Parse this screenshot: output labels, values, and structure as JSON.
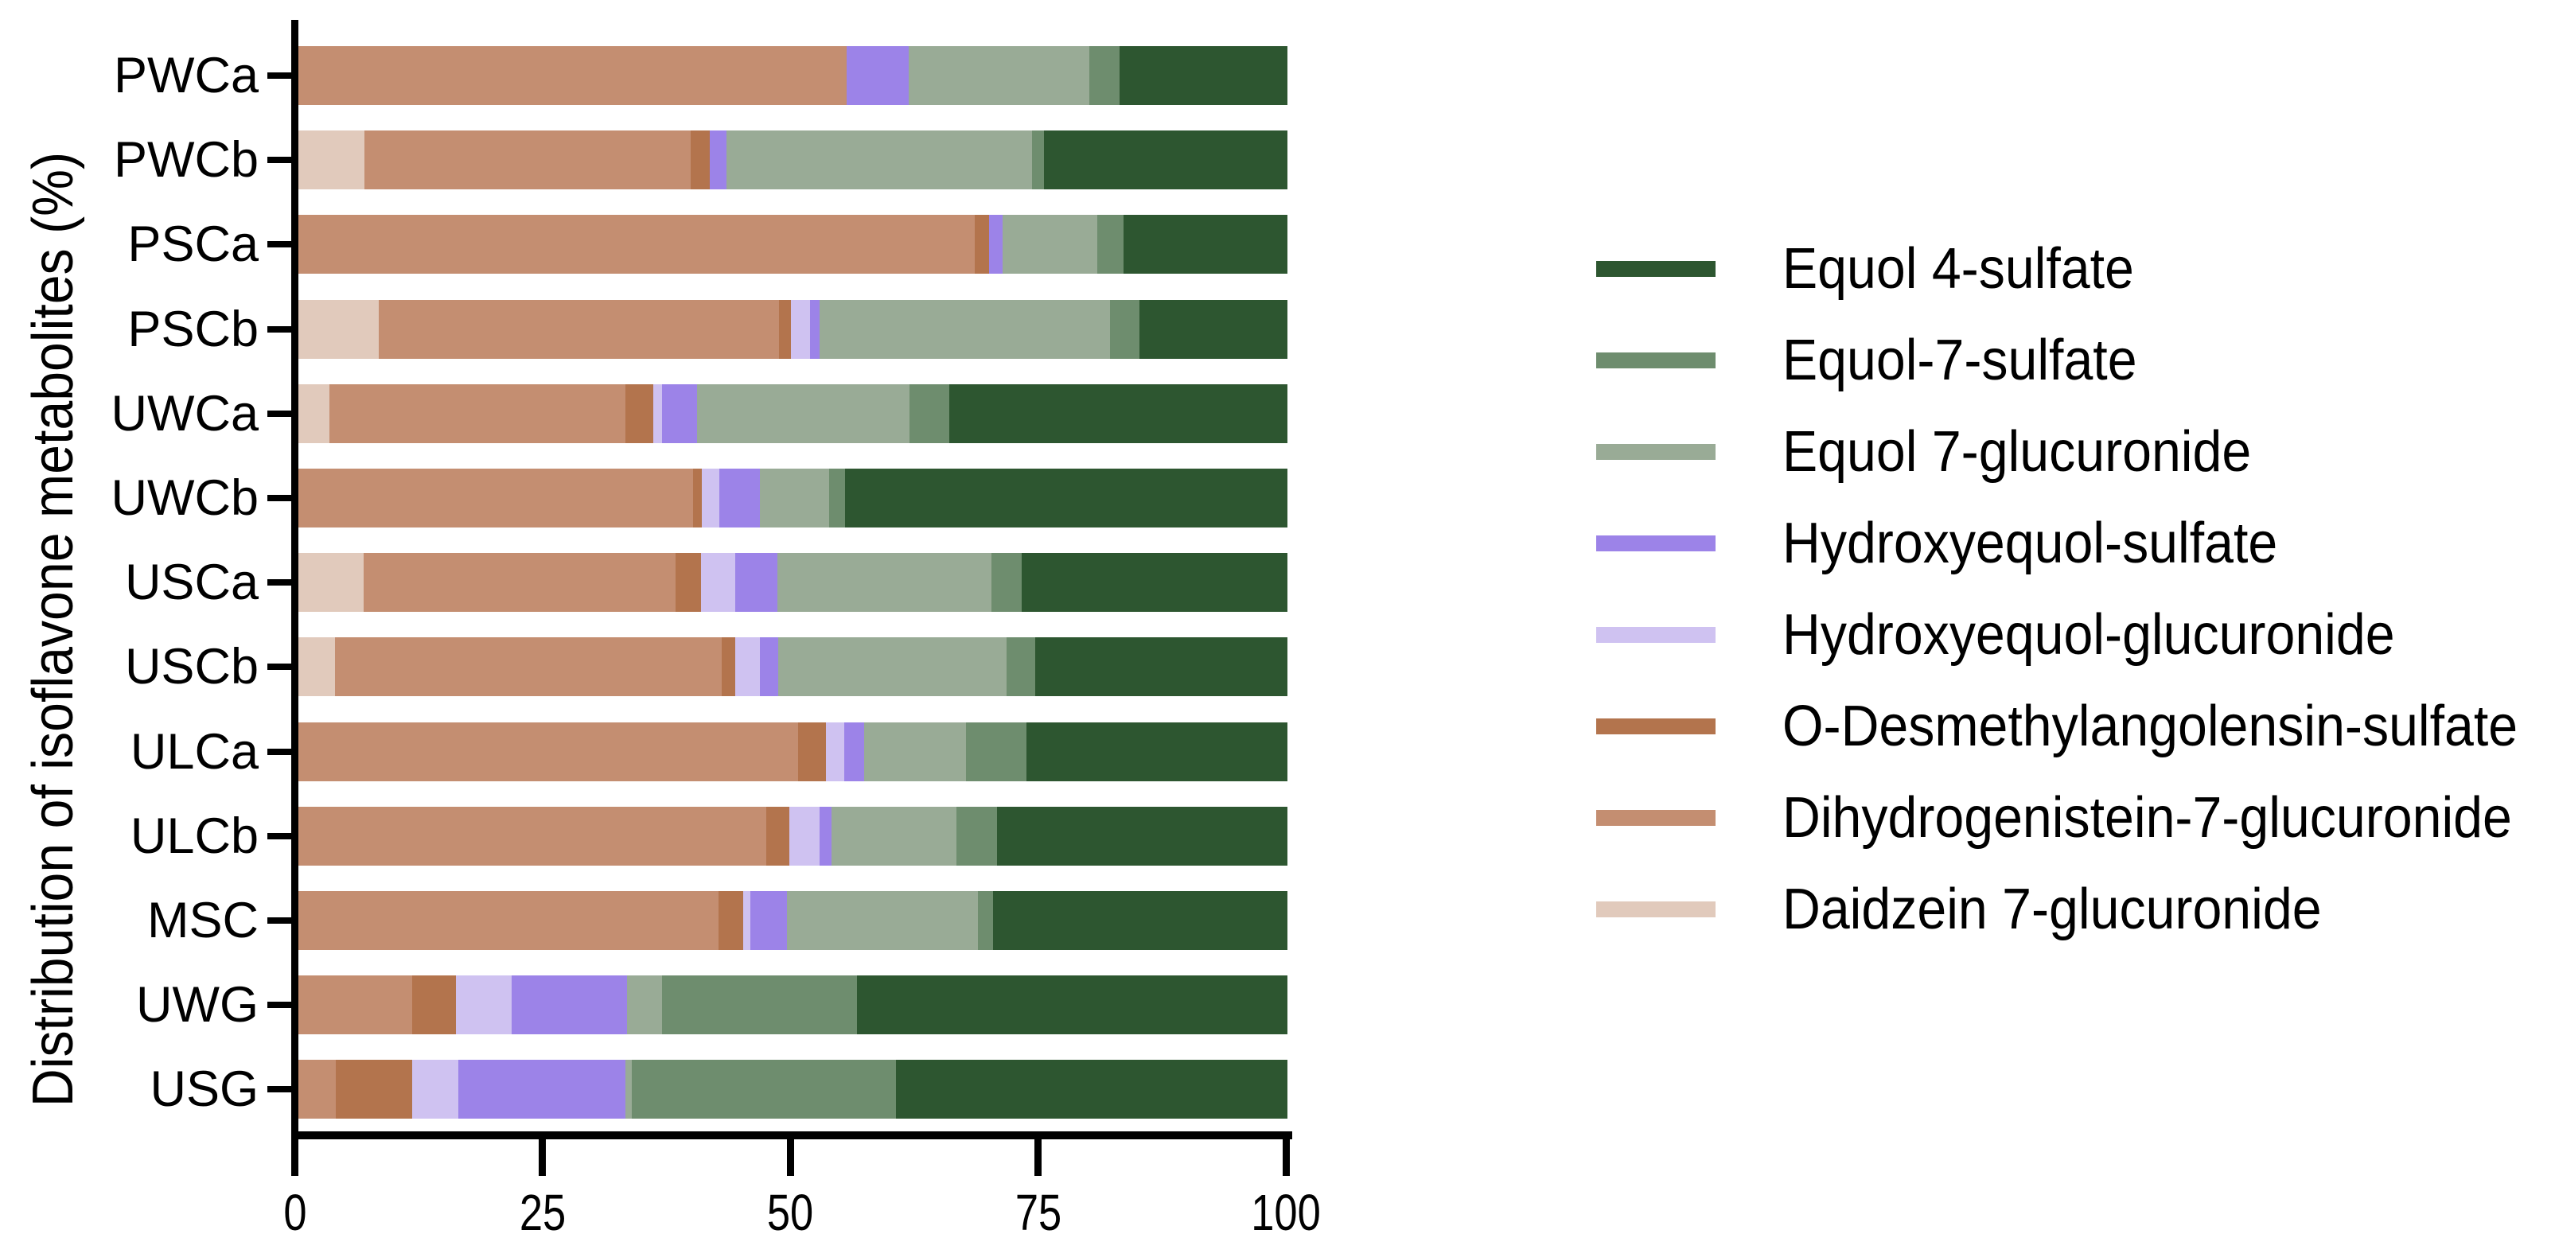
{
  "y_axis_title": "Distribution of isoflavone metabolites (%)",
  "colors": {
    "equol_4_sulfate": "#2d5630",
    "equol_7_sulfate": "#6e8d6e",
    "equol_7_glucuronide": "#99ab96",
    "hydroxyequol_sulfate": "#9c83e8",
    "hydroxyequol_glucuronide": "#cfc2f1",
    "odma_sulfate": "#b3744d",
    "dihydrogenistein_7_glucuronide": "#c48e71",
    "daidzein_7_glucuronide": "#e1cabc",
    "axis": "#000000"
  },
  "chart_data": {
    "type": "bar",
    "orientation": "horizontal",
    "stacked": true,
    "title": "",
    "xlabel": "",
    "ylabel": "Distribution of isoflavone metabolites (%)",
    "xlim": [
      0,
      100
    ],
    "x_ticks": [
      0,
      25,
      50,
      75,
      100
    ],
    "grid": false,
    "legend_position": "right",
    "categories": [
      "PWCa",
      "PWCb",
      "PSCa",
      "PSCb",
      "UWCa",
      "UWCb",
      "USCa",
      "USCb",
      "ULCa",
      "ULCb",
      "MSC",
      "UWG",
      "USG"
    ],
    "series": [
      {
        "name": "Daidzein 7-glucuronide",
        "color": "#e1cabc",
        "values": [
          0,
          6.7,
          0,
          8.1,
          3.1,
          0,
          6.6,
          3.7,
          0,
          0,
          0,
          0,
          0
        ]
      },
      {
        "name": "Dihydrogenistein-7-glucuronide",
        "color": "#c48e71",
        "values": [
          55.4,
          33.0,
          68.4,
          40.5,
          30.0,
          39.9,
          31.5,
          39.1,
          50.5,
          47.3,
          42.5,
          11.5,
          3.8
        ]
      },
      {
        "name": "O-Desmethylangolensin-sulfate",
        "color": "#b3744d",
        "values": [
          0,
          1.9,
          1.4,
          1.2,
          2.8,
          0.9,
          2.6,
          1.4,
          2.8,
          2.3,
          2.5,
          4.4,
          7.7
        ]
      },
      {
        "name": "Hydroxyequol-glucuronide",
        "color": "#cfc2f1",
        "values": [
          0,
          0,
          0,
          1.9,
          0.9,
          1.8,
          3.5,
          2.5,
          1.9,
          3.1,
          0.7,
          5.7,
          4.7
        ]
      },
      {
        "name": "Hydroxyequol-sulfate",
        "color": "#9c83e8",
        "values": [
          6.3,
          1.7,
          1.4,
          1.0,
          3.5,
          4.1,
          4.2,
          1.8,
          2.0,
          1.2,
          3.7,
          11.6,
          16.9
        ]
      },
      {
        "name": "Equol 7-glucuronide",
        "color": "#99ab96",
        "values": [
          18.3,
          30.9,
          9.6,
          29.4,
          21.5,
          7.0,
          21.7,
          23.1,
          10.3,
          12.6,
          19.3,
          3.6,
          0.6
        ]
      },
      {
        "name": "Equol-7-sulfate",
        "color": "#6e8d6e",
        "values": [
          3.0,
          1.2,
          2.6,
          2.9,
          4.0,
          1.6,
          3.0,
          2.9,
          6.1,
          4.1,
          1.5,
          19.7,
          26.7
        ]
      },
      {
        "name": "Equol 4-sulfate",
        "color": "#2d5630",
        "values": [
          17.0,
          24.6,
          16.6,
          15.0,
          34.2,
          44.7,
          26.9,
          25.5,
          26.4,
          29.4,
          29.8,
          43.5,
          39.6
        ]
      }
    ]
  },
  "legend": {
    "items": [
      {
        "label": "Equol 4-sulfate",
        "color": "#2d5630"
      },
      {
        "label": "Equol-7-sulfate",
        "color": "#6e8d6e"
      },
      {
        "label": "Equol 7-glucuronide",
        "color": "#99ab96"
      },
      {
        "label": "Hydroxyequol-sulfate",
        "color": "#9c83e8"
      },
      {
        "label": "Hydroxyequol-glucuronide",
        "color": "#cfc2f1"
      },
      {
        "label": "O-Desmethylangolensin-sulfate",
        "color": "#b3744d"
      },
      {
        "label": "Dihydrogenistein-7-glucuronide",
        "color": "#c48e71"
      },
      {
        "label": "Daidzein 7-glucuronide",
        "color": "#e1cabc"
      }
    ]
  },
  "x_tick_labels": [
    "0",
    "25",
    "50",
    "75",
    "100"
  ]
}
